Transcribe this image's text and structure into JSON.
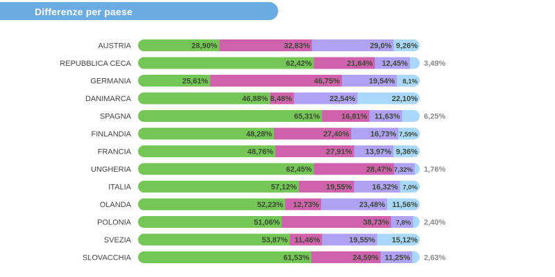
{
  "header": {
    "title": "Differenze per paese"
  },
  "chart_data": {
    "type": "bar",
    "orientation": "horizontal",
    "stacked": true,
    "title": "Differenze per paese",
    "categories": [
      "AUSTRIA",
      "REPUBBLICA CECA",
      "GERMANIA",
      "DANIMARCA",
      "SPAGNA",
      "FINLANDIA",
      "FRANCIA",
      "UNGHERIA",
      "ITALIA",
      "OLANDA",
      "POLONIA",
      "SVEZIA",
      "SLOVACCHIA"
    ],
    "colors": [
      "#74c657",
      "#d062ad",
      "#b1a1f5",
      "#a9d8fa"
    ],
    "series": [
      {
        "values": [
          28.9,
          62.42,
          25.61,
          46.88,
          65.31,
          48.28,
          48.76,
          62.45,
          57.12,
          52.23,
          51.06,
          53.87,
          61.53
        ],
        "labels": [
          "28,90%",
          "62,42%",
          "25,61%",
          "46,88%",
          "65,31%",
          "48,28%",
          "48,76%",
          "62,45%",
          "57,12%",
          "52,23%",
          "51,06%",
          "53,87%",
          "61,53%"
        ]
      },
      {
        "values": [
          32.83,
          21.64,
          46.75,
          8.48,
          16.81,
          27.4,
          27.91,
          28.47,
          19.55,
          12.73,
          38.73,
          11.46,
          24.59
        ],
        "labels": [
          "32,83%",
          "21,64%",
          "46,75%",
          "8,48%",
          "16,81%",
          "27,40%",
          "27,91%",
          "28,47%",
          "19,55%",
          "12,73%",
          "38,73%",
          "11,46%",
          "24,59%"
        ]
      },
      {
        "values": [
          29.0,
          12.45,
          19.54,
          22.54,
          11.63,
          16.73,
          13.97,
          7.32,
          16.32,
          23.48,
          7.8,
          19.55,
          11.25
        ],
        "labels": [
          "29,0%",
          "12,45%",
          "19,54%",
          "22,54%",
          "11,63%",
          "16,73%",
          "13,97%",
          "7,32%",
          "16,32%",
          "23,48%",
          "7,8%",
          "19,55%",
          "11,25%"
        ]
      },
      {
        "values": [
          9.26,
          3.49,
          8.1,
          22.1,
          6.25,
          7.59,
          9.36,
          1.76,
          7.0,
          11.56,
          2.4,
          15.12,
          2.63
        ],
        "labels": [
          "9,26%",
          "3,49%",
          "8,1%",
          "22,10%",
          "6,25%",
          "7,59%",
          "9,36%",
          "1,76%",
          "7,0%",
          "11,56%",
          "2,40%",
          "15,12%",
          "2,63%"
        ]
      }
    ],
    "xlim": [
      0,
      100
    ],
    "grid": false,
    "legend": "none"
  }
}
